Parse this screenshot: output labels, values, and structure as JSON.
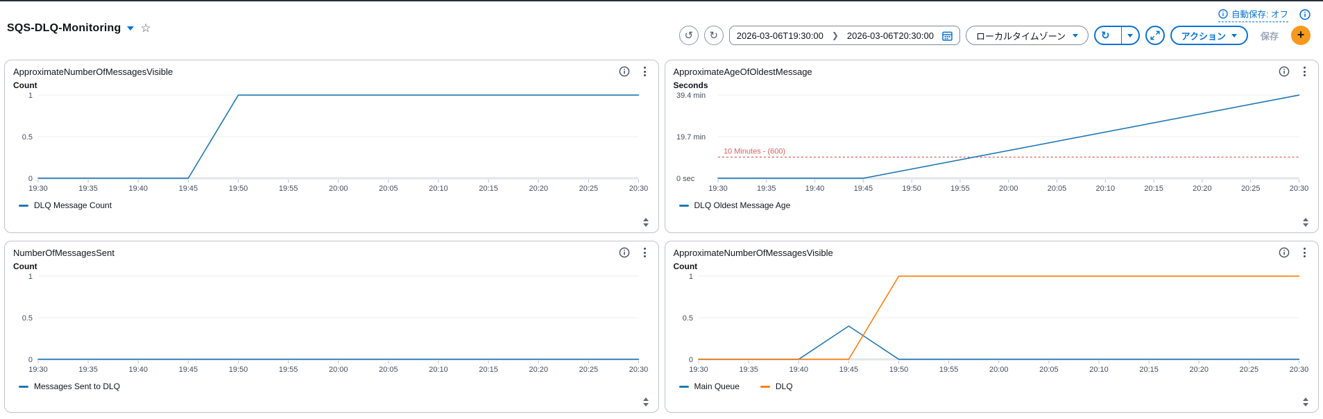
{
  "header": {
    "title": "SQS-DLQ-Monitoring",
    "autosave_label": "自動保存: オフ",
    "time_range": {
      "start": "2026-03-06T19:30:00",
      "end": "2026-03-06T20:30:00"
    },
    "timezone_button": "ローカルタイムゾーン",
    "actions_button": "アクション",
    "save_button": "保存",
    "add_button": "+"
  },
  "icons": {
    "star": "☆",
    "chevron_right": "❯",
    "undo": "↺",
    "redo": "↻",
    "refresh": "↻"
  },
  "colors": {
    "accent_blue": "#0972d3",
    "line_blue": "#1f77b4",
    "line_orange": "#ff7f0e",
    "annotation_red": "#dd5d5d",
    "add_button_orange": "#f8991d"
  },
  "chart_data": [
    {
      "type": "line",
      "title": "ApproximateNumberOfMessagesVisible",
      "ylabel": "Count",
      "ymax": 1,
      "ylim": [
        0,
        1
      ],
      "grid": true,
      "legend_position": "bottom",
      "y_ticks": [
        {
          "value": 1,
          "label": "1"
        },
        {
          "value": 0.5,
          "label": "0.5"
        },
        {
          "value": 0,
          "label": "0"
        }
      ],
      "x_range_minutes": [
        0,
        60
      ],
      "x_tick_labels": [
        "19:30",
        "19:35",
        "19:40",
        "19:45",
        "19:50",
        "19:55",
        "20:00",
        "20:05",
        "20:10",
        "20:15",
        "20:20",
        "20:25",
        "20:30"
      ],
      "series": [
        {
          "name": "DLQ Message Count",
          "color": "#1f77b4",
          "points": [
            [
              0,
              0
            ],
            [
              15,
              0
            ],
            [
              20,
              1
            ],
            [
              60,
              1
            ]
          ]
        }
      ]
    },
    {
      "type": "line",
      "title": "ApproximateAgeOfOldestMessage",
      "ylabel": "Seconds",
      "ymax": 2364,
      "ylim": [
        0,
        2364
      ],
      "grid": true,
      "legend_position": "bottom",
      "y_ticks": [
        {
          "value": 2364,
          "label": "39.4 min"
        },
        {
          "value": 1182,
          "label": "19.7 min"
        },
        {
          "value": 0,
          "label": "0 sec"
        }
      ],
      "annotation": {
        "value": 600,
        "label": "10 Minutes - (600)",
        "color": "#dd5d5d",
        "style": "dashed"
      },
      "x_range_minutes": [
        0,
        60
      ],
      "x_tick_labels": [
        "19:30",
        "19:35",
        "19:40",
        "19:45",
        "19:50",
        "19:55",
        "20:00",
        "20:05",
        "20:10",
        "20:15",
        "20:20",
        "20:25",
        "20:30"
      ],
      "series": [
        {
          "name": "DLQ Oldest Message Age",
          "color": "#1f77b4",
          "points": [
            [
              0,
              0
            ],
            [
              15,
              0
            ],
            [
              60,
              2364
            ]
          ]
        }
      ]
    },
    {
      "type": "line",
      "title": "NumberOfMessagesSent",
      "ylabel": "Count",
      "ymax": 1,
      "ylim": [
        0,
        1
      ],
      "grid": true,
      "legend_position": "bottom",
      "y_ticks": [
        {
          "value": 1,
          "label": "1"
        },
        {
          "value": 0.5,
          "label": "0.5"
        },
        {
          "value": 0,
          "label": "0"
        }
      ],
      "x_range_minutes": [
        0,
        60
      ],
      "x_tick_labels": [
        "19:30",
        "19:35",
        "19:40",
        "19:45",
        "19:50",
        "19:55",
        "20:00",
        "20:05",
        "20:10",
        "20:15",
        "20:20",
        "20:25",
        "20:30"
      ],
      "series": [
        {
          "name": "Messages Sent to DLQ",
          "color": "#1f77b4",
          "points": [
            [
              0,
              0
            ],
            [
              60,
              0
            ]
          ]
        }
      ]
    },
    {
      "type": "line",
      "title": "ApproximateNumberOfMessagesVisible",
      "ylabel": "Count",
      "ymax": 1,
      "ylim": [
        0,
        1
      ],
      "grid": true,
      "legend_position": "bottom",
      "y_ticks": [
        {
          "value": 1,
          "label": "1"
        },
        {
          "value": 0.5,
          "label": "0.5"
        },
        {
          "value": 0,
          "label": "0"
        }
      ],
      "x_range_minutes": [
        0,
        60
      ],
      "x_tick_labels": [
        "19:30",
        "19:35",
        "19:40",
        "19:45",
        "19:50",
        "19:55",
        "20:00",
        "20:05",
        "20:10",
        "20:15",
        "20:20",
        "20:25",
        "20:30"
      ],
      "series": [
        {
          "name": "Main Queue",
          "color": "#1f77b4",
          "points": [
            [
              0,
              0
            ],
            [
              10,
              0
            ],
            [
              15,
              0.4
            ],
            [
              20,
              0
            ],
            [
              60,
              0
            ]
          ]
        },
        {
          "name": "DLQ",
          "color": "#ff7f0e",
          "points": [
            [
              0,
              0
            ],
            [
              15,
              0
            ],
            [
              20,
              1
            ],
            [
              60,
              1
            ]
          ]
        }
      ]
    }
  ]
}
